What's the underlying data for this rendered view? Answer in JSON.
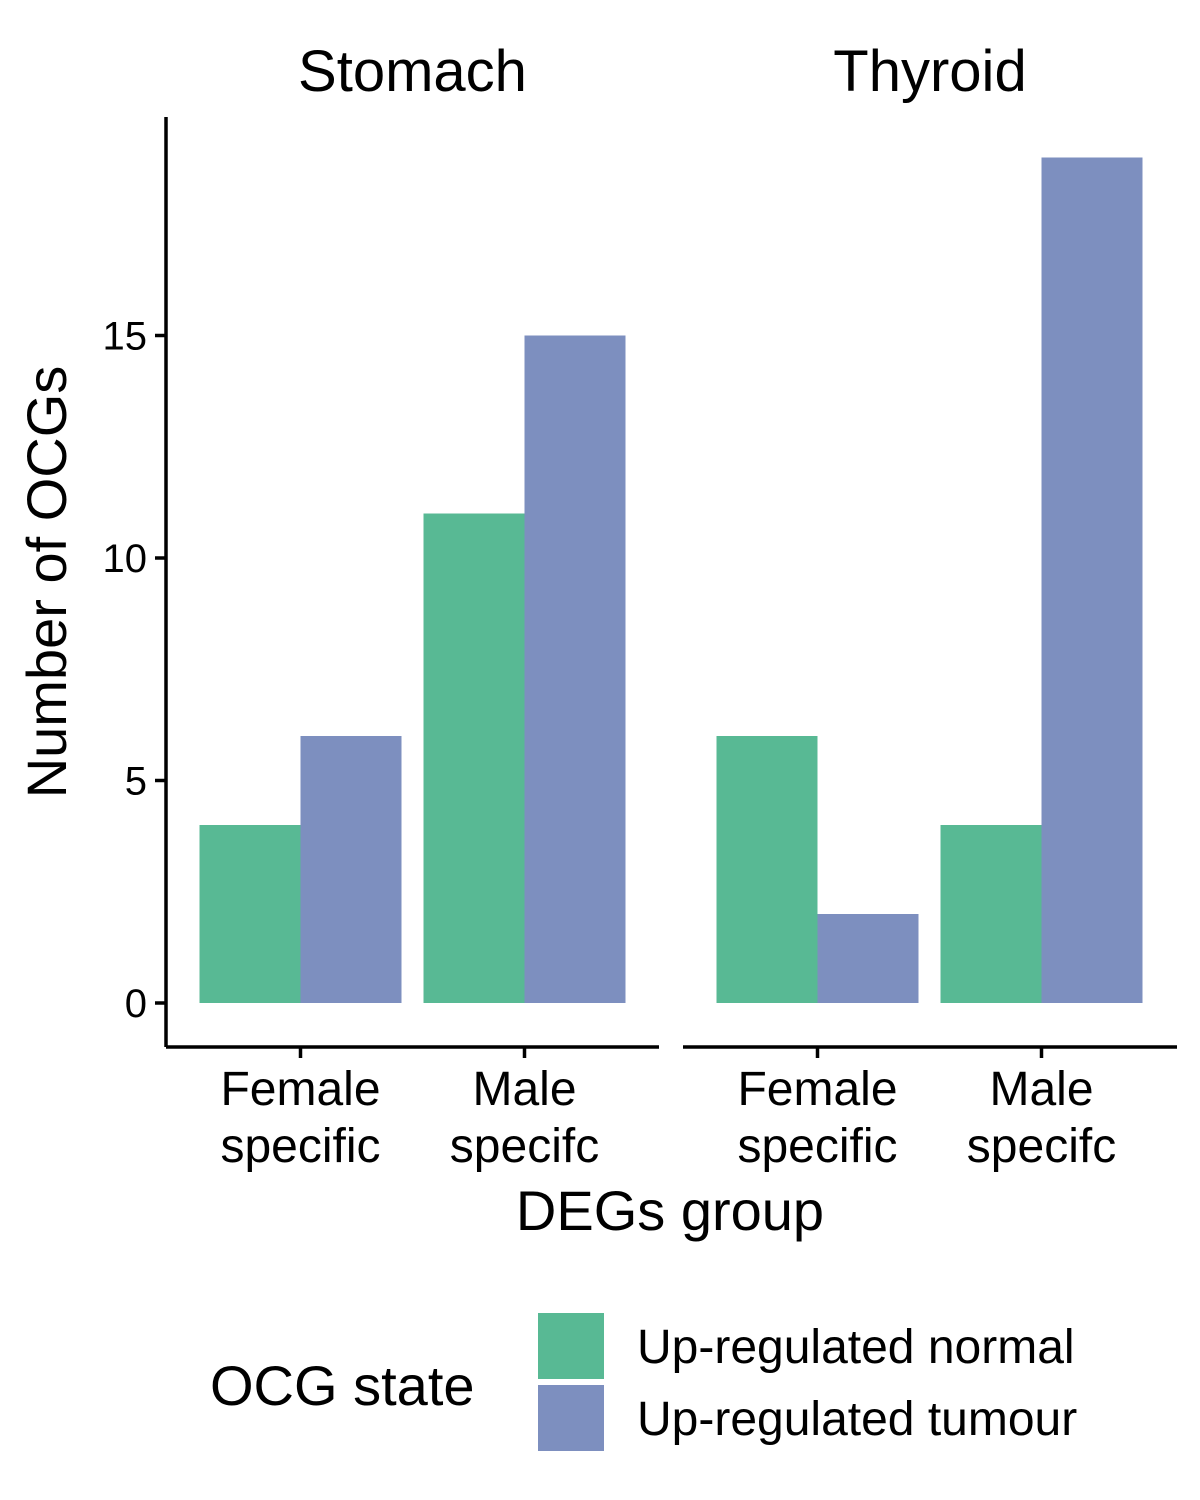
{
  "chart_data": {
    "type": "bar",
    "xlabel": "DEGs group",
    "ylabel": "Number of OCGs",
    "ylim": [
      -0.8,
      19.8
    ],
    "yticks": [
      "0",
      "5",
      "10",
      "15"
    ],
    "grid": false,
    "categories": [
      [
        "Female",
        "specific"
      ],
      [
        "Male",
        "specifc"
      ]
    ],
    "facets": [
      {
        "title": "Stomach",
        "series": [
          {
            "name": "Up-regulated normal",
            "values": [
              4,
              11
            ]
          },
          {
            "name": "Up-regulated tumour",
            "values": [
              6,
              15
            ]
          }
        ]
      },
      {
        "title": "Thyroid",
        "series": [
          {
            "name": "Up-regulated normal",
            "values": [
              6,
              4
            ]
          },
          {
            "name": "Up-regulated tumour",
            "values": [
              2,
              19
            ]
          }
        ]
      }
    ],
    "legend": {
      "title": "OCG state",
      "position": "bottom",
      "entries": [
        {
          "label": "Up-regulated normal",
          "color": "#58b994"
        },
        {
          "label": "Up-regulated tumour",
          "color": "#7d8fbf"
        }
      ]
    }
  }
}
